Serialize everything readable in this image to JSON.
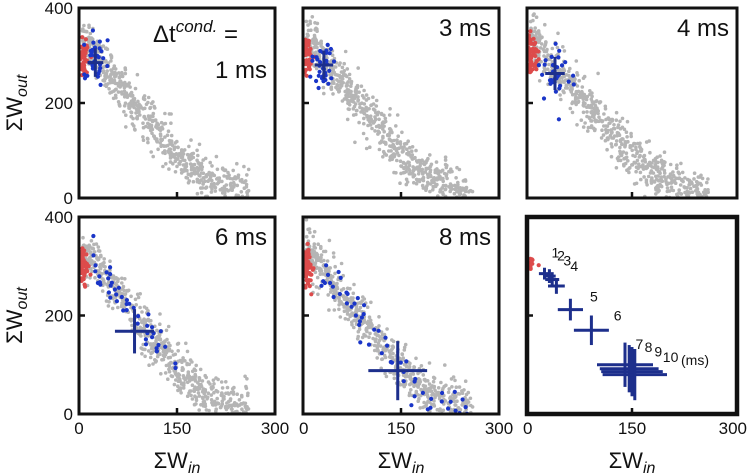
{
  "colors": {
    "gray": "#b5b5b5",
    "red": "#dd4b4b",
    "blue": "#1a35c8",
    "navy": "#1d2f8c",
    "frame": "#111111"
  },
  "labels": {
    "x_axis": "ΣW",
    "x_sub": "in",
    "y_axis": "ΣW",
    "y_sub": "out",
    "delta_line1_prefix": "Δt",
    "delta_line1_sup": "cond.",
    "delta_line1_suffix": " =",
    "delta_line2": "1 ms"
  },
  "x_ticks": [
    0,
    150,
    300
  ],
  "y_ticks": [
    0,
    200,
    400
  ],
  "chart_data": [
    {
      "type": "scatter",
      "panel": "1ms",
      "label": "1 ms",
      "xlim": [
        0,
        300
      ],
      "ylim": [
        0,
        400
      ],
      "cloud": {
        "x": [
          10,
          50,
          100,
          150,
          200,
          250
        ],
        "y": [
          330,
          260,
          175,
          90,
          35,
          10
        ]
      },
      "highlight": {
        "color": "blue",
        "cx": 25,
        "cy": 285,
        "sx": 10,
        "sy": 25
      },
      "mean": {
        "x": 25,
        "y": 285,
        "err_x": 12,
        "err_y": 30
      }
    },
    {
      "type": "scatter",
      "panel": "3ms",
      "label": "3 ms",
      "xlim": [
        0,
        300
      ],
      "ylim": [
        0,
        400
      ],
      "cloud": {
        "x": [
          10,
          50,
          100,
          150,
          200,
          250
        ],
        "y": [
          330,
          260,
          175,
          90,
          35,
          10
        ]
      },
      "highlight": {
        "color": "blue",
        "cx": 30,
        "cy": 280,
        "sx": 12,
        "sy": 28
      },
      "mean": {
        "x": 32,
        "y": 280,
        "err_x": 14,
        "err_y": 30
      }
    },
    {
      "type": "scatter",
      "panel": "4ms",
      "label": "4 ms",
      "xlim": [
        0,
        300
      ],
      "ylim": [
        0,
        400
      ],
      "cloud": {
        "x": [
          10,
          50,
          100,
          150,
          200,
          250
        ],
        "y": [
          330,
          260,
          175,
          90,
          35,
          10
        ]
      },
      "highlight": {
        "color": "blue",
        "cx": 40,
        "cy": 260,
        "sx": 12,
        "sy": 35
      },
      "mean": {
        "x": 40,
        "y": 262,
        "err_x": 14,
        "err_y": 35
      }
    },
    {
      "type": "scatter",
      "panel": "6ms",
      "label": "6 ms",
      "xlim": [
        0,
        300
      ],
      "ylim": [
        0,
        400
      ],
      "cloud": {
        "x": [
          10,
          50,
          100,
          150,
          200,
          250
        ],
        "y": [
          330,
          260,
          175,
          90,
          35,
          10
        ]
      },
      "highlight": {
        "color": "blue",
        "cx": 85,
        "cy": 170,
        "sx": 40,
        "sy": 60
      },
      "mean": {
        "x": 85,
        "y": 168,
        "err_x": 30,
        "err_y": 45
      }
    },
    {
      "type": "scatter",
      "panel": "8ms",
      "label": "8 ms",
      "xlim": [
        0,
        300
      ],
      "ylim": [
        0,
        400
      ],
      "cloud": {
        "x": [
          10,
          50,
          100,
          150,
          200,
          250
        ],
        "y": [
          330,
          260,
          175,
          90,
          35,
          10
        ]
      },
      "highlight": {
        "color": "blue",
        "cx": 140,
        "cy": 95,
        "sx": 70,
        "sy": 55
      },
      "mean": {
        "x": 145,
        "y": 88,
        "err_x": 45,
        "err_y": 60
      }
    },
    {
      "type": "scatter",
      "panel": "summary",
      "label": "(ms)",
      "xlim": [
        0,
        300
      ],
      "ylim": [
        0,
        400
      ],
      "summary_crosses": [
        {
          "label": "1",
          "x": 25,
          "y": 285,
          "err_x": 8,
          "err_y": 12
        },
        {
          "label": "2",
          "x": 32,
          "y": 280,
          "err_x": 9,
          "err_y": 14
        },
        {
          "label": "3",
          "x": 36,
          "y": 273,
          "err_x": 10,
          "err_y": 15
        },
        {
          "label": "4",
          "x": 42,
          "y": 260,
          "err_x": 12,
          "err_y": 16
        },
        {
          "label": "5",
          "x": 62,
          "y": 212,
          "err_x": 18,
          "err_y": 22
        },
        {
          "label": "6",
          "x": 92,
          "y": 170,
          "err_x": 25,
          "err_y": 30
        },
        {
          "label": "7",
          "x": 140,
          "y": 100,
          "err_x": 40,
          "err_y": 45
        },
        {
          "label": "8",
          "x": 146,
          "y": 92,
          "err_x": 42,
          "err_y": 48
        },
        {
          "label": "9",
          "x": 150,
          "y": 86,
          "err_x": 44,
          "err_y": 50
        },
        {
          "label": "10",
          "x": 154,
          "y": 80,
          "err_x": 46,
          "err_y": 52
        }
      ]
    }
  ]
}
